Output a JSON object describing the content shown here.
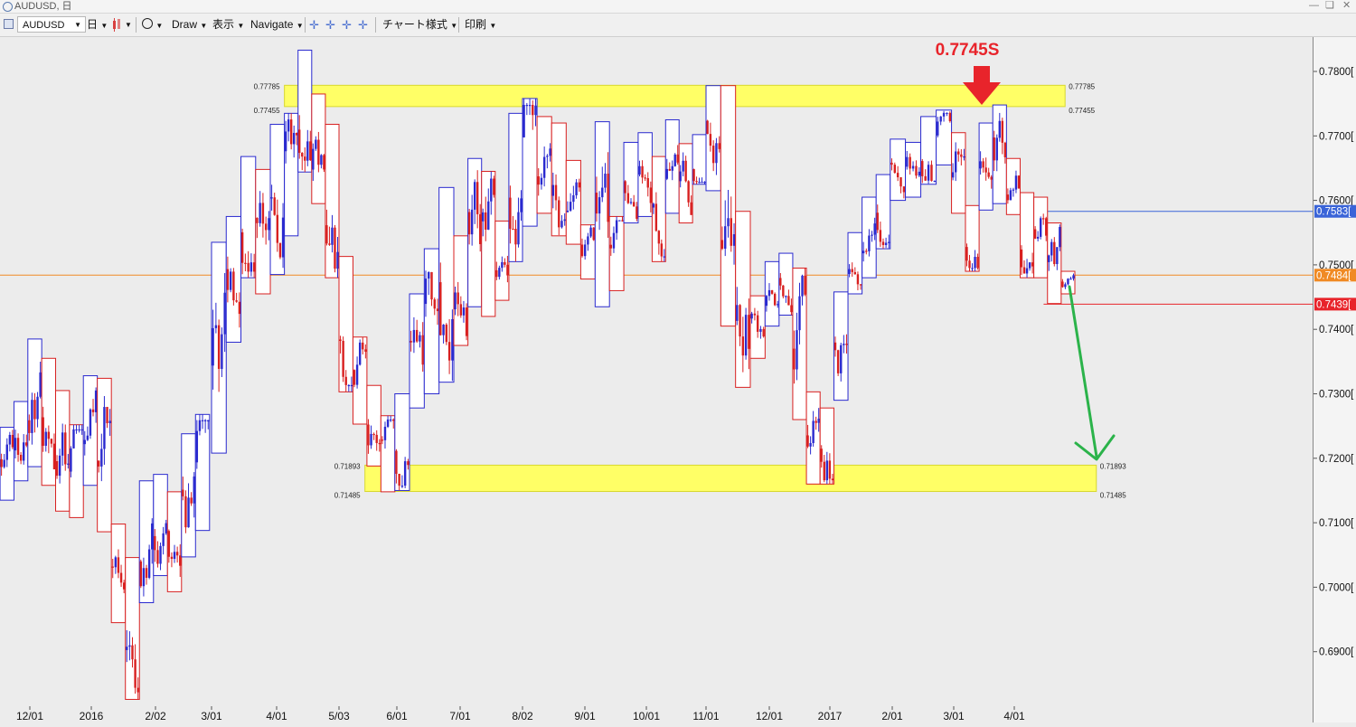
{
  "window": {
    "title": "AUDUSD, 日"
  },
  "toolbar": {
    "symbol": "AUDUSD",
    "timeframe": "日",
    "draw_label": "Draw",
    "view_label": "表示",
    "navigate_label": "Navigate",
    "chart_style_label": "チャート様式",
    "print_label": "印刷"
  },
  "annotation": {
    "label": "0.7745S",
    "color": "#e8242b"
  },
  "colors": {
    "up": "#2a2acf",
    "down": "#d82020",
    "zone": "#ffff66",
    "arrow": "#2bb34a",
    "mark": "#e8242b",
    "orange": "#f08a24",
    "blue_line": "#3a64d8",
    "red_line": "#b62a2a"
  },
  "zones": [
    {
      "top_label": "0.77785",
      "bottom_label": "0.77455",
      "top": 0.77785,
      "bottom": 0.77455,
      "left_date": "2016-04-05",
      "right_date": "2017-04-27"
    },
    {
      "top_label": "0.71893",
      "bottom_label": "0.71485",
      "top": 0.71893,
      "bottom": 0.71485,
      "left_date": "2016-05-16",
      "right_date": "2017-05-13"
    }
  ],
  "price_tags": [
    {
      "label": "0.7583[",
      "value": 0.7583,
      "color": "#3a64d8",
      "line_from": "2017-04-13"
    },
    {
      "label": "0.7484[",
      "value": 0.7484,
      "color": "#f08a24",
      "line_from": "2015-11-10"
    },
    {
      "label": "0.7439[",
      "value": 0.7439,
      "color": "#e8242b",
      "line_from": "2017-04-16"
    }
  ],
  "chart_data": {
    "type": "candlestick",
    "y_ticks": [
      "0.7800[",
      "0.7700[",
      "0.7600[",
      "0.7500[",
      "0.7400[",
      "0.7300[",
      "0.7200[",
      "0.7100[",
      "0.7000[",
      "0.6900["
    ],
    "y_tick_values": [
      0.78,
      0.77,
      0.76,
      0.75,
      0.74,
      0.73,
      0.72,
      0.71,
      0.7,
      0.69
    ],
    "x_ticks": [
      "12/01",
      "2016",
      "2/02",
      "3/01",
      "4/01",
      "5/03",
      "6/01",
      "7/01",
      "8/02",
      "9/01",
      "10/01",
      "11/01",
      "12/01",
      "2017",
      "2/01",
      "3/01",
      "4/01"
    ],
    "x_tick_dates": [
      "2015-12-01",
      "2016-01-01",
      "2016-02-02",
      "2016-03-01",
      "2016-04-01",
      "2016-05-03",
      "2016-06-01",
      "2016-07-01",
      "2016-08-02",
      "2016-09-01",
      "2016-10-01",
      "2016-11-01",
      "2016-12-01",
      "2017-01-01",
      "2017-02-01",
      "2017-03-01",
      "2017-04-01"
    ],
    "series": [
      {
        "date": "2015-11-16",
        "low": 0.7135,
        "high": 0.7248
      },
      {
        "date": "2015-11-23",
        "low": 0.7165,
        "high": 0.7288
      },
      {
        "date": "2015-11-30",
        "low": 0.7187,
        "high": 0.7385
      },
      {
        "date": "2015-12-07",
        "low": 0.7158,
        "high": 0.7355
      },
      {
        "date": "2015-12-14",
        "low": 0.7118,
        "high": 0.7305
      },
      {
        "date": "2015-12-21",
        "low": 0.7108,
        "high": 0.7252
      },
      {
        "date": "2015-12-28",
        "low": 0.7158,
        "high": 0.7328
      },
      {
        "date": "2016-01-04",
        "low": 0.7086,
        "high": 0.7324
      },
      {
        "date": "2016-01-11",
        "low": 0.6945,
        "high": 0.7098
      },
      {
        "date": "2016-01-18",
        "low": 0.6826,
        "high": 0.7046
      },
      {
        "date": "2016-01-25",
        "low": 0.6976,
        "high": 0.7165
      },
      {
        "date": "2016-02-01",
        "low": 0.7018,
        "high": 0.7175
      },
      {
        "date": "2016-02-08",
        "low": 0.6993,
        "high": 0.7148
      },
      {
        "date": "2016-02-15",
        "low": 0.7047,
        "high": 0.7238
      },
      {
        "date": "2016-02-22",
        "low": 0.7088,
        "high": 0.7268
      },
      {
        "date": "2016-03-01",
        "low": 0.7208,
        "high": 0.7535
      },
      {
        "date": "2016-03-08",
        "low": 0.738,
        "high": 0.7575
      },
      {
        "date": "2016-03-15",
        "low": 0.748,
        "high": 0.7668
      },
      {
        "date": "2016-03-22",
        "low": 0.7455,
        "high": 0.7648
      },
      {
        "date": "2016-03-29",
        "low": 0.7485,
        "high": 0.7718
      },
      {
        "date": "2016-04-05",
        "low": 0.7545,
        "high": 0.7735
      },
      {
        "date": "2016-04-12",
        "low": 0.7644,
        "high": 0.7833
      },
      {
        "date": "2016-04-19",
        "low": 0.7595,
        "high": 0.7765
      },
      {
        "date": "2016-04-26",
        "low": 0.748,
        "high": 0.7718
      },
      {
        "date": "2016-05-03",
        "low": 0.7303,
        "high": 0.7513
      },
      {
        "date": "2016-05-10",
        "low": 0.7253,
        "high": 0.7388
      },
      {
        "date": "2016-05-17",
        "low": 0.7188,
        "high": 0.7313
      },
      {
        "date": "2016-05-24",
        "low": 0.7148,
        "high": 0.7266
      },
      {
        "date": "2016-05-31",
        "low": 0.715,
        "high": 0.73
      },
      {
        "date": "2016-06-07",
        "low": 0.7278,
        "high": 0.7455
      },
      {
        "date": "2016-06-14",
        "low": 0.73,
        "high": 0.7525
      },
      {
        "date": "2016-06-21",
        "low": 0.7318,
        "high": 0.762
      },
      {
        "date": "2016-06-28",
        "low": 0.7375,
        "high": 0.7545
      },
      {
        "date": "2016-07-05",
        "low": 0.7435,
        "high": 0.7665
      },
      {
        "date": "2016-07-12",
        "low": 0.742,
        "high": 0.7645
      },
      {
        "date": "2016-07-19",
        "low": 0.7445,
        "high": 0.7568
      },
      {
        "date": "2016-07-26",
        "low": 0.7505,
        "high": 0.7735
      },
      {
        "date": "2016-08-02",
        "low": 0.756,
        "high": 0.7758
      },
      {
        "date": "2016-08-09",
        "low": 0.758,
        "high": 0.773
      },
      {
        "date": "2016-08-16",
        "low": 0.7545,
        "high": 0.772
      },
      {
        "date": "2016-08-23",
        "low": 0.7532,
        "high": 0.7662
      },
      {
        "date": "2016-08-30",
        "low": 0.7478,
        "high": 0.7562
      },
      {
        "date": "2016-09-06",
        "low": 0.7435,
        "high": 0.7722
      },
      {
        "date": "2016-09-13",
        "low": 0.746,
        "high": 0.7575
      },
      {
        "date": "2016-09-20",
        "low": 0.7565,
        "high": 0.769
      },
      {
        "date": "2016-09-27",
        "low": 0.7575,
        "high": 0.7705
      },
      {
        "date": "2016-10-04",
        "low": 0.7505,
        "high": 0.7668
      },
      {
        "date": "2016-10-11",
        "low": 0.758,
        "high": 0.7725
      },
      {
        "date": "2016-10-18",
        "low": 0.7565,
        "high": 0.7688
      },
      {
        "date": "2016-10-25",
        "low": 0.7625,
        "high": 0.7702
      },
      {
        "date": "2016-11-01",
        "low": 0.7615,
        "high": 0.7778
      },
      {
        "date": "2016-11-08",
        "low": 0.7405,
        "high": 0.7778
      },
      {
        "date": "2016-11-15",
        "low": 0.731,
        "high": 0.7583
      },
      {
        "date": "2016-11-22",
        "low": 0.7355,
        "high": 0.7452
      },
      {
        "date": "2016-11-29",
        "low": 0.7405,
        "high": 0.7505
      },
      {
        "date": "2016-12-06",
        "low": 0.7422,
        "high": 0.7518
      },
      {
        "date": "2016-12-13",
        "low": 0.726,
        "high": 0.7495
      },
      {
        "date": "2016-12-20",
        "low": 0.716,
        "high": 0.7303
      },
      {
        "date": "2016-12-27",
        "low": 0.716,
        "high": 0.7278
      },
      {
        "date": "2017-01-03",
        "low": 0.729,
        "high": 0.7458
      },
      {
        "date": "2017-01-10",
        "low": 0.7455,
        "high": 0.755
      },
      {
        "date": "2017-01-17",
        "low": 0.748,
        "high": 0.7605
      },
      {
        "date": "2017-01-24",
        "low": 0.7525,
        "high": 0.764
      },
      {
        "date": "2017-01-31",
        "low": 0.76,
        "high": 0.7695
      },
      {
        "date": "2017-02-07",
        "low": 0.7605,
        "high": 0.769
      },
      {
        "date": "2017-02-14",
        "low": 0.7625,
        "high": 0.773
      },
      {
        "date": "2017-02-21",
        "low": 0.7655,
        "high": 0.774
      },
      {
        "date": "2017-02-28",
        "low": 0.758,
        "high": 0.7705
      },
      {
        "date": "2017-03-07",
        "low": 0.749,
        "high": 0.7592
      },
      {
        "date": "2017-03-14",
        "low": 0.7585,
        "high": 0.772
      },
      {
        "date": "2017-03-21",
        "low": 0.7595,
        "high": 0.7748
      },
      {
        "date": "2017-03-28",
        "low": 0.7578,
        "high": 0.7665
      },
      {
        "date": "2017-04-04",
        "low": 0.748,
        "high": 0.7612
      },
      {
        "date": "2017-04-11",
        "low": 0.748,
        "high": 0.7605
      },
      {
        "date": "2017-04-18",
        "low": 0.744,
        "high": 0.7565
      },
      {
        "date": "2017-04-25",
        "low": 0.7455,
        "high": 0.749
      }
    ]
  }
}
